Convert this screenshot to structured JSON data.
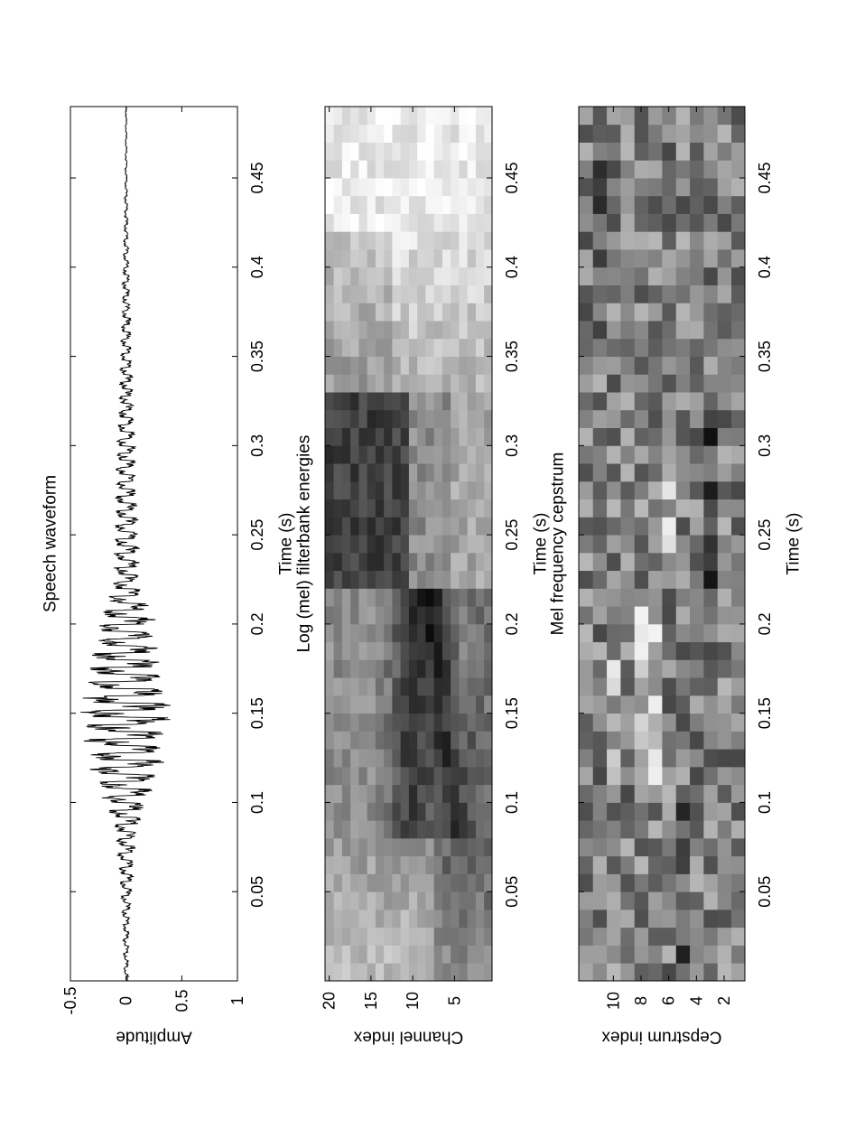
{
  "chart_data": [
    {
      "type": "line",
      "title": "Speech waveform",
      "xlabel": "Time (s)",
      "ylabel": "Amplitude",
      "xlim": [
        0.0,
        0.49
      ],
      "ylim": [
        -0.5,
        1.0
      ],
      "xticks": [
        0.05,
        0.1,
        0.15,
        0.2,
        0.25,
        0.3,
        0.35,
        0.4,
        0.45
      ],
      "xtick_labels": [
        "0.05",
        "0.1",
        "0.15",
        "0.2",
        "0.25",
        "0.3",
        "0.35",
        "0.4",
        "0.45"
      ],
      "yticks": [
        -0.5,
        0,
        0.5,
        1
      ],
      "ytick_labels": [
        "-0.5",
        "0",
        "0.5",
        "1"
      ],
      "grid": false,
      "series": [
        {
          "color": "#000000",
          "envelope": {
            "t": [
              0.0,
              0.03,
              0.06,
              0.08,
              0.1,
              0.12,
              0.14,
              0.15,
              0.17,
              0.19,
              0.2,
              0.22,
              0.25,
              0.28,
              0.3,
              0.32,
              0.34,
              0.36,
              0.38,
              0.4,
              0.42,
              0.45,
              0.49
            ],
            "amplitude": [
              0.02,
              0.03,
              0.07,
              0.1,
              0.22,
              0.34,
              0.4,
              0.46,
              0.38,
              0.3,
              0.3,
              0.14,
              0.12,
              0.1,
              0.1,
              0.07,
              0.06,
              0.05,
              0.04,
              0.03,
              0.02,
              0.01,
              0.005
            ]
          },
          "pitch_hz": 125
        }
      ]
    },
    {
      "type": "heatmap",
      "title": "Log (mel) filterbank energies",
      "xlabel": "Time (s)",
      "ylabel": "Channel index",
      "xlim": [
        0.0,
        0.49
      ],
      "ylim": [
        0.5,
        20.5
      ],
      "xticks": [
        0.05,
        0.1,
        0.15,
        0.2,
        0.25,
        0.3,
        0.35,
        0.4,
        0.45
      ],
      "xtick_labels": [
        "0.05",
        "0.1",
        "0.15",
        "0.2",
        "0.25",
        "0.3",
        "0.35",
        "0.4",
        "0.45"
      ],
      "yticks": [
        5,
        10,
        15,
        20
      ],
      "ytick_labels": [
        "5",
        "10",
        "15",
        "20"
      ],
      "colormap": "gray",
      "n_frames": 49,
      "n_rows": 20,
      "frame_step_s": 0.01
    },
    {
      "type": "heatmap",
      "title": "Mel frequency cepstrum",
      "xlabel": "Time (s)",
      "ylabel": "Cepstrum index",
      "xlim": [
        0.0,
        0.49
      ],
      "ylim": [
        0.5,
        12.5
      ],
      "xticks": [
        0.05,
        0.1,
        0.15,
        0.2,
        0.25,
        0.3,
        0.35,
        0.4,
        0.45
      ],
      "xtick_labels": [
        "0.05",
        "0.1",
        "0.15",
        "0.2",
        "0.25",
        "0.3",
        "0.35",
        "0.4",
        "0.45"
      ],
      "yticks": [
        2,
        4,
        6,
        8,
        10
      ],
      "ytick_labels": [
        "2",
        "4",
        "6",
        "8",
        "10"
      ],
      "colormap": "gray",
      "n_frames": 49,
      "n_rows": 12,
      "frame_step_s": 0.01
    }
  ]
}
